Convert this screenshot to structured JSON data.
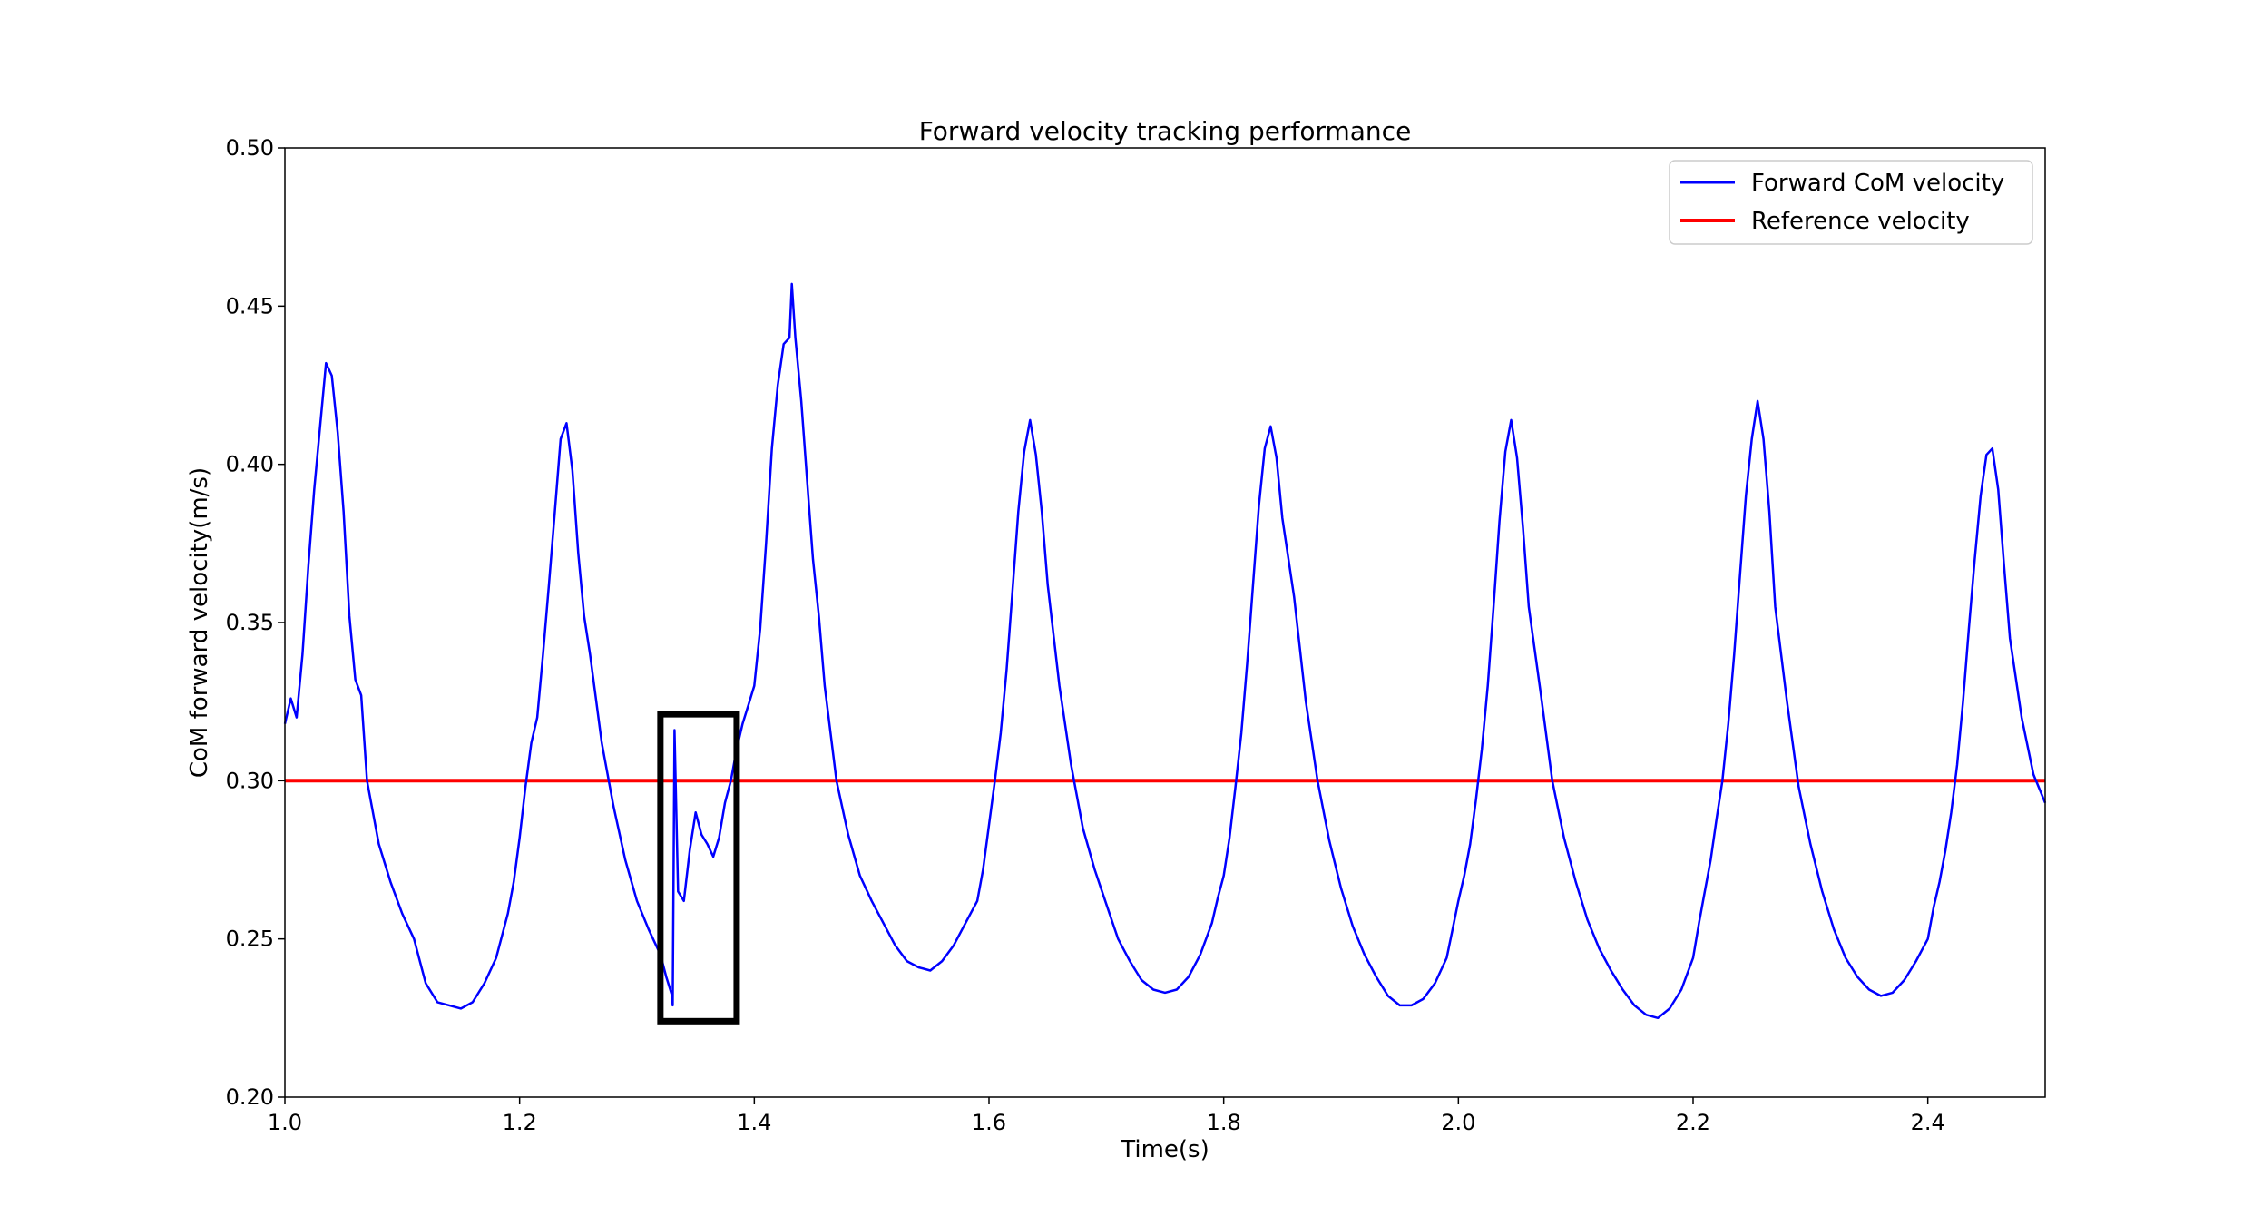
{
  "chart_data": {
    "type": "line",
    "title": "Forward velocity tracking performance",
    "xlabel": "Time(s)",
    "ylabel": "CoM forward velocity(m/s)",
    "xlim": [
      1.0,
      2.5
    ],
    "ylim": [
      0.2,
      0.5
    ],
    "xticks": [
      1.0,
      1.2,
      1.4,
      1.6,
      1.8,
      2.0,
      2.2,
      2.4
    ],
    "xtick_labels": [
      "1.0",
      "1.2",
      "1.4",
      "1.6",
      "1.8",
      "2.0",
      "2.2",
      "2.4"
    ],
    "yticks": [
      0.2,
      0.25,
      0.3,
      0.35,
      0.4,
      0.45,
      0.5
    ],
    "ytick_labels": [
      "0.20",
      "0.25",
      "0.30",
      "0.35",
      "0.40",
      "0.45",
      "0.50"
    ],
    "grid": false,
    "legend_position": "top-right",
    "series": [
      {
        "name": "Forward CoM velocity",
        "color": "#0000ff",
        "x": [
          1.0,
          1.005,
          1.01,
          1.015,
          1.02,
          1.025,
          1.03,
          1.035,
          1.04,
          1.045,
          1.05,
          1.055,
          1.06,
          1.065,
          1.07,
          1.08,
          1.09,
          1.1,
          1.11,
          1.115,
          1.12,
          1.13,
          1.14,
          1.15,
          1.16,
          1.17,
          1.18,
          1.19,
          1.195,
          1.2,
          1.205,
          1.21,
          1.215,
          1.22,
          1.225,
          1.23,
          1.235,
          1.24,
          1.245,
          1.25,
          1.255,
          1.26,
          1.27,
          1.28,
          1.29,
          1.3,
          1.31,
          1.32,
          1.325,
          1.33,
          1.3305,
          1.332,
          1.335,
          1.34,
          1.345,
          1.35,
          1.355,
          1.36,
          1.365,
          1.37,
          1.375,
          1.38,
          1.385,
          1.39,
          1.395,
          1.4,
          1.405,
          1.41,
          1.415,
          1.42,
          1.425,
          1.43,
          1.432,
          1.435,
          1.44,
          1.445,
          1.45,
          1.455,
          1.46,
          1.47,
          1.48,
          1.49,
          1.5,
          1.51,
          1.52,
          1.53,
          1.54,
          1.55,
          1.56,
          1.57,
          1.58,
          1.59,
          1.595,
          1.6,
          1.605,
          1.61,
          1.615,
          1.62,
          1.625,
          1.63,
          1.635,
          1.64,
          1.645,
          1.65,
          1.66,
          1.67,
          1.68,
          1.69,
          1.7,
          1.71,
          1.72,
          1.73,
          1.74,
          1.75,
          1.76,
          1.77,
          1.78,
          1.79,
          1.795,
          1.8,
          1.805,
          1.81,
          1.815,
          1.82,
          1.825,
          1.83,
          1.835,
          1.84,
          1.845,
          1.85,
          1.86,
          1.87,
          1.88,
          1.89,
          1.9,
          1.91,
          1.92,
          1.93,
          1.94,
          1.95,
          1.96,
          1.97,
          1.98,
          1.99,
          1.995,
          2.0,
          2.005,
          2.01,
          2.015,
          2.02,
          2.025,
          2.03,
          2.035,
          2.04,
          2.045,
          2.05,
          2.055,
          2.06,
          2.07,
          2.08,
          2.09,
          2.1,
          2.11,
          2.12,
          2.13,
          2.14,
          2.15,
          2.16,
          2.17,
          2.18,
          2.19,
          2.2,
          2.205,
          2.21,
          2.215,
          2.22,
          2.225,
          2.23,
          2.235,
          2.24,
          2.245,
          2.25,
          2.255,
          2.26,
          2.265,
          2.27,
          2.28,
          2.29,
          2.3,
          2.31,
          2.32,
          2.33,
          2.34,
          2.35,
          2.36,
          2.37,
          2.38,
          2.39,
          2.4,
          2.405,
          2.41,
          2.415,
          2.42,
          2.425,
          2.43,
          2.435,
          2.44,
          2.445,
          2.45,
          2.455,
          2.46,
          2.465,
          2.47,
          2.48,
          2.49,
          2.5
        ],
        "y": [
          0.318,
          0.326,
          0.32,
          0.34,
          0.368,
          0.392,
          0.412,
          0.432,
          0.428,
          0.41,
          0.385,
          0.352,
          0.332,
          0.327,
          0.3,
          0.28,
          0.268,
          0.258,
          0.25,
          0.243,
          0.236,
          0.23,
          0.229,
          0.228,
          0.23,
          0.236,
          0.244,
          0.258,
          0.268,
          0.282,
          0.298,
          0.312,
          0.32,
          0.34,
          0.362,
          0.385,
          0.408,
          0.413,
          0.398,
          0.372,
          0.352,
          0.34,
          0.312,
          0.292,
          0.275,
          0.262,
          0.253,
          0.245,
          0.238,
          0.232,
          0.229,
          0.316,
          0.265,
          0.262,
          0.278,
          0.29,
          0.283,
          0.28,
          0.276,
          0.282,
          0.293,
          0.3,
          0.31,
          0.318,
          0.324,
          0.33,
          0.348,
          0.375,
          0.405,
          0.425,
          0.438,
          0.44,
          0.457,
          0.44,
          0.42,
          0.395,
          0.37,
          0.352,
          0.33,
          0.3,
          0.283,
          0.27,
          0.262,
          0.255,
          0.248,
          0.243,
          0.241,
          0.24,
          0.243,
          0.248,
          0.255,
          0.262,
          0.272,
          0.286,
          0.3,
          0.315,
          0.335,
          0.36,
          0.385,
          0.404,
          0.414,
          0.403,
          0.385,
          0.362,
          0.33,
          0.305,
          0.285,
          0.272,
          0.261,
          0.25,
          0.243,
          0.237,
          0.234,
          0.233,
          0.234,
          0.238,
          0.245,
          0.255,
          0.263,
          0.27,
          0.282,
          0.298,
          0.315,
          0.337,
          0.362,
          0.387,
          0.405,
          0.412,
          0.402,
          0.383,
          0.358,
          0.325,
          0.3,
          0.281,
          0.266,
          0.254,
          0.245,
          0.238,
          0.232,
          0.229,
          0.229,
          0.231,
          0.236,
          0.244,
          0.253,
          0.262,
          0.27,
          0.28,
          0.294,
          0.31,
          0.33,
          0.355,
          0.382,
          0.404,
          0.414,
          0.402,
          0.38,
          0.355,
          0.328,
          0.3,
          0.282,
          0.268,
          0.256,
          0.247,
          0.24,
          0.234,
          0.229,
          0.226,
          0.225,
          0.228,
          0.234,
          0.244,
          0.255,
          0.265,
          0.275,
          0.288,
          0.3,
          0.318,
          0.34,
          0.365,
          0.39,
          0.408,
          0.42,
          0.408,
          0.385,
          0.355,
          0.325,
          0.298,
          0.28,
          0.265,
          0.253,
          0.244,
          0.238,
          0.234,
          0.232,
          0.233,
          0.237,
          0.243,
          0.25,
          0.26,
          0.268,
          0.278,
          0.29,
          0.305,
          0.325,
          0.348,
          0.37,
          0.39,
          0.403,
          0.405,
          0.392,
          0.368,
          0.345,
          0.32,
          0.302,
          0.293
        ]
      },
      {
        "name": "Reference velocity",
        "color": "#ff0000",
        "x": [
          1.0,
          2.5
        ],
        "y": [
          0.3,
          0.3
        ]
      }
    ],
    "annotations": [
      {
        "type": "rectangle",
        "color": "#000000",
        "x": [
          1.32,
          1.385
        ],
        "y": [
          0.224,
          0.321
        ]
      }
    ]
  }
}
